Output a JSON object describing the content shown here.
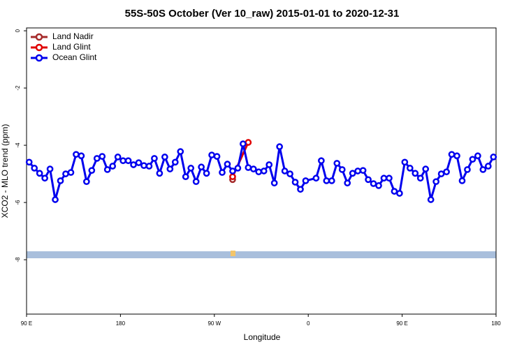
{
  "chart_data": {
    "type": "line",
    "title": "55S-50S October (Ver 10_raw)   2015-01-01 to 2020-12-31",
    "x_label": "Longitude",
    "y_label": "XCO2 - MLO trend (ppm)",
    "xlim": [
      90,
      540
    ],
    "xticks": [
      {
        "value": 90,
        "label": "90 E"
      },
      180,
      {
        "value": 270,
        "label": "90 W"
      },
      {
        "value": 360,
        "label": "0"
      },
      {
        "value": 450,
        "label": "90 E"
      },
      {
        "value": 540,
        "label": "180"
      }
    ],
    "ylim": [
      -9.9,
      0.1
    ],
    "yticks": [
      0,
      -2,
      -4,
      -6,
      -8
    ],
    "legend": "top-left",
    "series": [
      {
        "name": "Land Nadir",
        "color": "#a52a2a",
        "x": [
          287.5
        ],
        "values": [
          -5.2
        ]
      },
      {
        "name": "Land Glint",
        "color": "#e00000",
        "x": [
          287.5,
          302.5
        ],
        "values": [
          -5.1,
          -3.9
        ]
      },
      {
        "name": "Ocean Glint",
        "color": "#0000ee",
        "x": [
          92.5,
          97.5,
          102.5,
          107.5,
          112.5,
          117.5,
          122.5,
          127.5,
          132.5,
          137.5,
          142.5,
          147.5,
          152.5,
          157.5,
          162.5,
          167.5,
          172.5,
          177.5,
          182.5,
          187.5,
          192.5,
          197.5,
          202.5,
          207.5,
          212.5,
          217.5,
          222.5,
          227.5,
          232.5,
          237.5,
          242.5,
          247.5,
          252.5,
          257.5,
          262.5,
          267.5,
          272.5,
          277.5,
          282.5,
          287.5,
          292.5,
          297.5,
          302.5,
          307.5,
          312.5,
          317.5,
          322.5,
          327.5,
          332.5,
          337.5,
          342.5,
          347.5,
          352.5,
          357.5,
          367.5,
          372.5,
          377.5,
          382.5,
          387.5,
          392.5,
          397.5,
          402.5,
          407.5,
          412.5,
          417.5,
          422.5,
          427.5,
          432.5,
          437.5,
          442.5,
          447.5,
          452.5,
          457.5,
          462.5,
          467.5,
          472.5,
          477.5,
          482.5,
          487.5,
          492.5,
          497.5,
          502.5,
          507.5,
          512.5,
          517.5,
          522.5,
          527.5,
          532.5,
          537.5
        ],
        "values": [
          -4.59,
          -4.8,
          -4.98,
          -5.15,
          -4.83,
          -5.9,
          -5.24,
          -5.0,
          -4.95,
          -4.32,
          -4.37,
          -5.27,
          -4.88,
          -4.46,
          -4.39,
          -4.85,
          -4.73,
          -4.41,
          -4.54,
          -4.54,
          -4.68,
          -4.61,
          -4.71,
          -4.73,
          -4.46,
          -4.98,
          -4.41,
          -4.83,
          -4.59,
          -4.22,
          -5.1,
          -4.8,
          -5.27,
          -4.76,
          -4.98,
          -4.34,
          -4.39,
          -4.95,
          -4.66,
          -4.9,
          -4.8,
          -3.95,
          -4.78,
          -4.83,
          -4.93,
          -4.9,
          -4.68,
          -5.32,
          -4.05,
          -4.9,
          -5.0,
          -5.29,
          -5.54,
          -5.24,
          -5.15,
          -4.54,
          -5.24,
          -5.24,
          -4.63,
          -4.85,
          -5.32,
          -4.98,
          -4.9,
          -4.88,
          -5.2,
          -5.34,
          -5.41,
          -5.15,
          -5.15,
          -5.61,
          -5.68,
          -4.59,
          -4.8,
          -4.98,
          -5.15,
          -4.83,
          -5.9,
          -5.27,
          -5.0,
          -4.93,
          -4.32,
          -4.37,
          -5.24,
          -4.85,
          -4.49,
          -4.37,
          -4.85,
          -4.73,
          -4.41
        ]
      }
    ]
  }
}
